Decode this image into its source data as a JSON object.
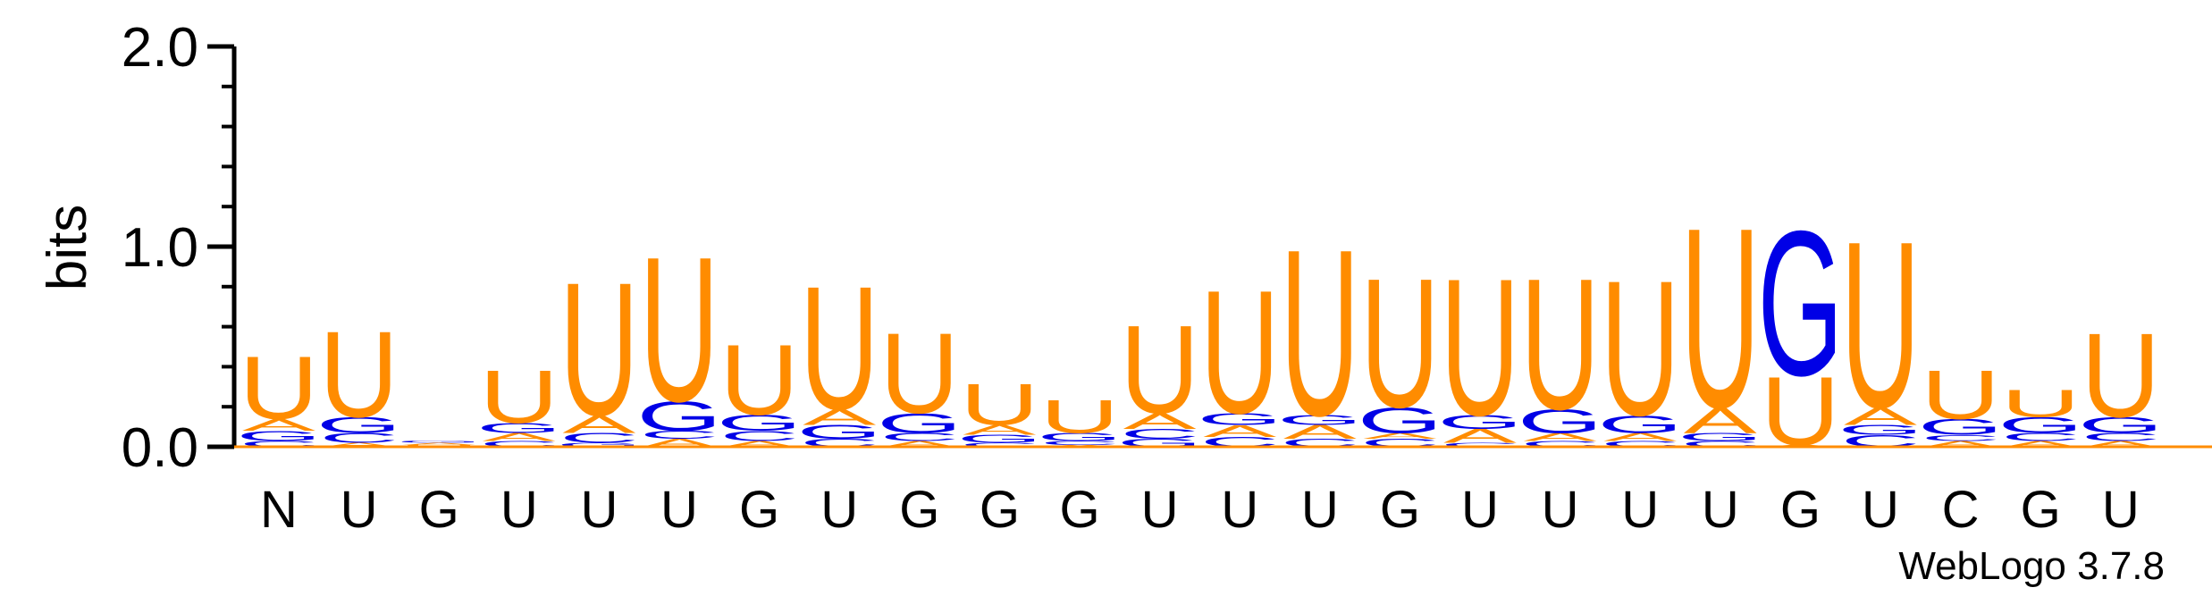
{
  "chart_data": {
    "type": "sequence-logo",
    "ylabel": "bits",
    "ylim": [
      0,
      2.0
    ],
    "yticks": [
      "0.0",
      "1.0",
      "2.0"
    ],
    "x_labels": [
      "N",
      "U",
      "G",
      "U",
      "U",
      "U",
      "G",
      "U",
      "G",
      "G",
      "G",
      "U",
      "U",
      "U",
      "G",
      "U",
      "U",
      "U",
      "U",
      "G",
      "U",
      "C",
      "G",
      "U"
    ],
    "credit": "WebLogo 3.7.8",
    "colors": {
      "U": "#FF8C00",
      "A": "#FF8C00",
      "G": "#0000E6",
      "C": "#0000E6"
    },
    "positions": [
      {
        "letters": [
          [
            "C",
            0.03
          ],
          [
            "G",
            0.05
          ],
          [
            "A",
            0.06
          ],
          [
            "U",
            0.32
          ]
        ]
      },
      {
        "letters": [
          [
            "A",
            0.02
          ],
          [
            "C",
            0.05
          ],
          [
            "G",
            0.08
          ],
          [
            "U",
            0.44
          ]
        ]
      },
      {
        "letters": [
          [
            "U",
            0.01
          ],
          [
            "A",
            0.01
          ],
          [
            "G",
            0.01
          ]
        ]
      },
      {
        "letters": [
          [
            "C",
            0.03
          ],
          [
            "A",
            0.04
          ],
          [
            "G",
            0.05
          ],
          [
            "U",
            0.27
          ]
        ]
      },
      {
        "letters": [
          [
            "G",
            0.02
          ],
          [
            "C",
            0.05
          ],
          [
            "A",
            0.09
          ],
          [
            "U",
            0.68
          ]
        ]
      },
      {
        "letters": [
          [
            "A",
            0.04
          ],
          [
            "C",
            0.04
          ],
          [
            "G",
            0.15
          ],
          [
            "U",
            0.74
          ]
        ]
      },
      {
        "letters": [
          [
            "A",
            0.03
          ],
          [
            "C",
            0.05
          ],
          [
            "G",
            0.08
          ],
          [
            "U",
            0.36
          ]
        ]
      },
      {
        "letters": [
          [
            "C",
            0.04
          ],
          [
            "G",
            0.07
          ],
          [
            "A",
            0.08
          ],
          [
            "U",
            0.63
          ]
        ]
      },
      {
        "letters": [
          [
            "A",
            0.03
          ],
          [
            "C",
            0.04
          ],
          [
            "G",
            0.1
          ],
          [
            "U",
            0.41
          ]
        ]
      },
      {
        "letters": [
          [
            "C",
            0.02
          ],
          [
            "G",
            0.04
          ],
          [
            "A",
            0.05
          ],
          [
            "U",
            0.21
          ]
        ]
      },
      {
        "letters": [
          [
            "A",
            0.01
          ],
          [
            "C",
            0.02
          ],
          [
            "G",
            0.04
          ],
          [
            "U",
            0.17
          ]
        ]
      },
      {
        "letters": [
          [
            "G",
            0.04
          ],
          [
            "C",
            0.05
          ],
          [
            "A",
            0.08
          ],
          [
            "U",
            0.45
          ]
        ]
      },
      {
        "letters": [
          [
            "C",
            0.05
          ],
          [
            "A",
            0.06
          ],
          [
            "G",
            0.06
          ],
          [
            "U",
            0.63
          ]
        ]
      },
      {
        "letters": [
          [
            "C",
            0.04
          ],
          [
            "A",
            0.07
          ],
          [
            "G",
            0.05
          ],
          [
            "U",
            0.85
          ]
        ]
      },
      {
        "letters": [
          [
            "C",
            0.04
          ],
          [
            "A",
            0.03
          ],
          [
            "G",
            0.13
          ],
          [
            "U",
            0.66
          ]
        ]
      },
      {
        "letters": [
          [
            "C",
            0.02
          ],
          [
            "A",
            0.07
          ],
          [
            "G",
            0.07
          ],
          [
            "U",
            0.7
          ]
        ]
      },
      {
        "letters": [
          [
            "C",
            0.03
          ],
          [
            "A",
            0.04
          ],
          [
            "G",
            0.12
          ],
          [
            "U",
            0.67
          ]
        ]
      },
      {
        "letters": [
          [
            "C",
            0.03
          ],
          [
            "A",
            0.04
          ],
          [
            "G",
            0.09
          ],
          [
            "U",
            0.69
          ]
        ]
      },
      {
        "letters": [
          [
            "C",
            0.03
          ],
          [
            "G",
            0.04
          ],
          [
            "A",
            0.13
          ],
          [
            "U",
            0.92
          ]
        ]
      },
      {
        "letters": [
          [
            "A",
            0.01
          ],
          [
            "U",
            0.35
          ],
          [
            "G",
            0.74
          ]
        ]
      },
      {
        "letters": [
          [
            "C",
            0.06
          ],
          [
            "G",
            0.05
          ],
          [
            "A",
            0.09
          ],
          [
            "U",
            0.85
          ]
        ]
      },
      {
        "letters": [
          [
            "A",
            0.03
          ],
          [
            "C",
            0.03
          ],
          [
            "G",
            0.08
          ],
          [
            "U",
            0.25
          ]
        ]
      },
      {
        "letters": [
          [
            "A",
            0.03
          ],
          [
            "C",
            0.04
          ],
          [
            "G",
            0.08
          ],
          [
            "U",
            0.14
          ]
        ]
      },
      {
        "letters": [
          [
            "A",
            0.03
          ],
          [
            "C",
            0.04
          ],
          [
            "G",
            0.08
          ],
          [
            "U",
            0.43
          ]
        ]
      }
    ]
  }
}
